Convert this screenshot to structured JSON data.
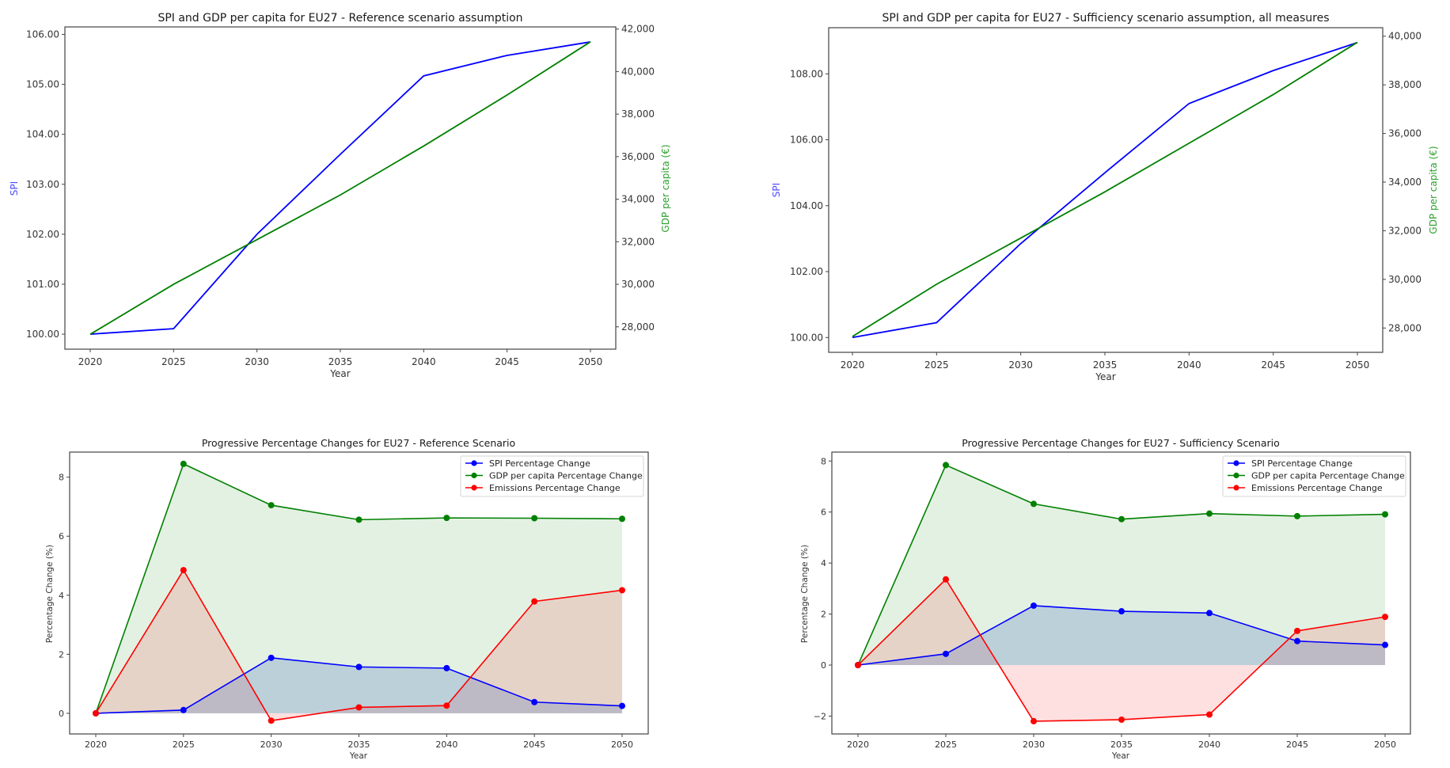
{
  "chart_data": [
    {
      "id": "top-left",
      "type": "line",
      "title": "SPI and GDP per capita for EU27 - Reference scenario assumption",
      "xlabel": "Year",
      "ylabel": "SPI",
      "ylabel_right": "GDP per capita (€)",
      "x": [
        2020,
        2025,
        2030,
        2035,
        2040,
        2045,
        2050
      ],
      "x_ticks": [
        "2020",
        "2025",
        "2030",
        "2035",
        "2040",
        "2045",
        "2050"
      ],
      "ylim": [
        99.7,
        106.15
      ],
      "y_ticks": [
        100,
        101,
        102,
        103,
        104,
        105,
        106
      ],
      "y_tick_labels": [
        "100.00",
        "101.00",
        "102.00",
        "103.00",
        "104.00",
        "105.00",
        "106.00"
      ],
      "ylim_right": [
        26950,
        42100
      ],
      "y_right_ticks": [
        28000,
        30000,
        32000,
        34000,
        36000,
        38000,
        40000,
        42000
      ],
      "y_right_tick_labels": [
        "28,000",
        "30,000",
        "32,000",
        "34,000",
        "36,000",
        "38,000",
        "40,000",
        "42,000"
      ],
      "grid": false,
      "series": [
        {
          "name": "SPI",
          "axis": "left",
          "color": "#0000ff",
          "values": [
            100.0,
            100.11,
            102.0,
            103.6,
            105.17,
            105.58,
            105.85
          ]
        },
        {
          "name": "GDP per capita",
          "axis": "right",
          "color": "#008000",
          "values": [
            27650,
            30000,
            32100,
            34200,
            36500,
            38900,
            41400
          ]
        }
      ]
    },
    {
      "id": "top-right",
      "type": "line",
      "title": "SPI and GDP per capita for EU27 - Sufficiency scenario assumption, all measures",
      "xlabel": "Year",
      "ylabel": "SPI",
      "ylabel_right": "GDP per capita (€)",
      "x": [
        2020,
        2025,
        2030,
        2035,
        2040,
        2045,
        2050
      ],
      "x_ticks": [
        "2020",
        "2025",
        "2030",
        "2035",
        "2040",
        "2045",
        "2050"
      ],
      "ylim": [
        99.55,
        109.4
      ],
      "y_ticks": [
        100,
        102,
        104,
        106,
        108
      ],
      "y_tick_labels": [
        "100.00",
        "102.00",
        "104.00",
        "106.00",
        "108.00"
      ],
      "ylim_right": [
        27000,
        40350
      ],
      "y_right_ticks": [
        28000,
        30000,
        32000,
        34000,
        36000,
        38000,
        40000
      ],
      "y_right_tick_labels": [
        "28,000",
        "30,000",
        "32,000",
        "34,000",
        "36,000",
        "38,000",
        "40,000"
      ],
      "grid": false,
      "series": [
        {
          "name": "SPI",
          "axis": "left",
          "color": "#0000ff",
          "values": [
            100.0,
            100.45,
            102.85,
            105.0,
            107.1,
            108.1,
            108.95
          ]
        },
        {
          "name": "GDP per capita",
          "axis": "right",
          "color": "#008000",
          "values": [
            27650,
            29800,
            31700,
            33600,
            35600,
            37600,
            39750
          ]
        }
      ]
    },
    {
      "id": "bottom-left",
      "type": "area",
      "title": "Progressive Percentage Changes for EU27 - Reference Scenario",
      "xlabel": "Year",
      "ylabel": "Percentage Change (%)",
      "x": [
        2020,
        2025,
        2030,
        2035,
        2040,
        2045,
        2050
      ],
      "x_ticks": [
        "2020",
        "2025",
        "2030",
        "2035",
        "2040",
        "2045",
        "2050"
      ],
      "ylim": [
        -0.7,
        8.85
      ],
      "y_ticks": [
        0,
        2,
        4,
        6,
        8
      ],
      "y_tick_labels": [
        "0",
        "2",
        "4",
        "6",
        "8"
      ],
      "grid": false,
      "legend": "top-right",
      "series": [
        {
          "name": "SPI Percentage Change",
          "color": "#0000ff",
          "fill": "rgba(70,110,190,0.25)",
          "values": [
            0,
            0.11,
            1.88,
            1.57,
            1.53,
            0.38,
            0.25
          ]
        },
        {
          "name": "GDP per capita Percentage Change",
          "color": "#008000",
          "fill": "rgba(0,128,0,0.11)",
          "values": [
            0,
            8.45,
            7.05,
            6.56,
            6.62,
            6.61,
            6.59
          ]
        },
        {
          "name": "Emissions Percentage Change",
          "color": "#ff0000",
          "fill": "rgba(255,0,0,0.12)",
          "values": [
            0,
            4.85,
            -0.25,
            0.2,
            0.26,
            3.79,
            4.17
          ]
        }
      ]
    },
    {
      "id": "bottom-right",
      "type": "area",
      "title": "Progressive Percentage Changes for EU27 - Sufficiency Scenario",
      "xlabel": "Year",
      "ylabel": "Percentage Change (%)",
      "x": [
        2020,
        2025,
        2030,
        2035,
        2040,
        2045,
        2050
      ],
      "x_ticks": [
        "2020",
        "2025",
        "2030",
        "2035",
        "2040",
        "2045",
        "2050"
      ],
      "ylim": [
        -2.7,
        8.35
      ],
      "y_ticks": [
        -2,
        0,
        2,
        4,
        6,
        8
      ],
      "y_tick_labels": [
        "−2",
        "0",
        "2",
        "4",
        "6",
        "8"
      ],
      "grid": false,
      "legend": "top-right",
      "series": [
        {
          "name": "SPI Percentage Change",
          "color": "#0000ff",
          "fill": "rgba(70,110,190,0.25)",
          "values": [
            0,
            0.44,
            2.33,
            2.11,
            2.04,
            0.94,
            0.79
          ]
        },
        {
          "name": "GDP per capita Percentage Change",
          "color": "#008000",
          "fill": "rgba(0,128,0,0.11)",
          "values": [
            0,
            7.84,
            6.32,
            5.72,
            5.94,
            5.84,
            5.91
          ]
        },
        {
          "name": "Emissions Percentage Change",
          "color": "#ff0000",
          "fill": "rgba(255,0,0,0.12)",
          "values": [
            0,
            3.36,
            -2.2,
            -2.14,
            -1.94,
            1.34,
            1.89
          ]
        }
      ]
    }
  ],
  "colors": {
    "spi_label": "#4d4dff",
    "gdp_label": "#2ca02c"
  }
}
